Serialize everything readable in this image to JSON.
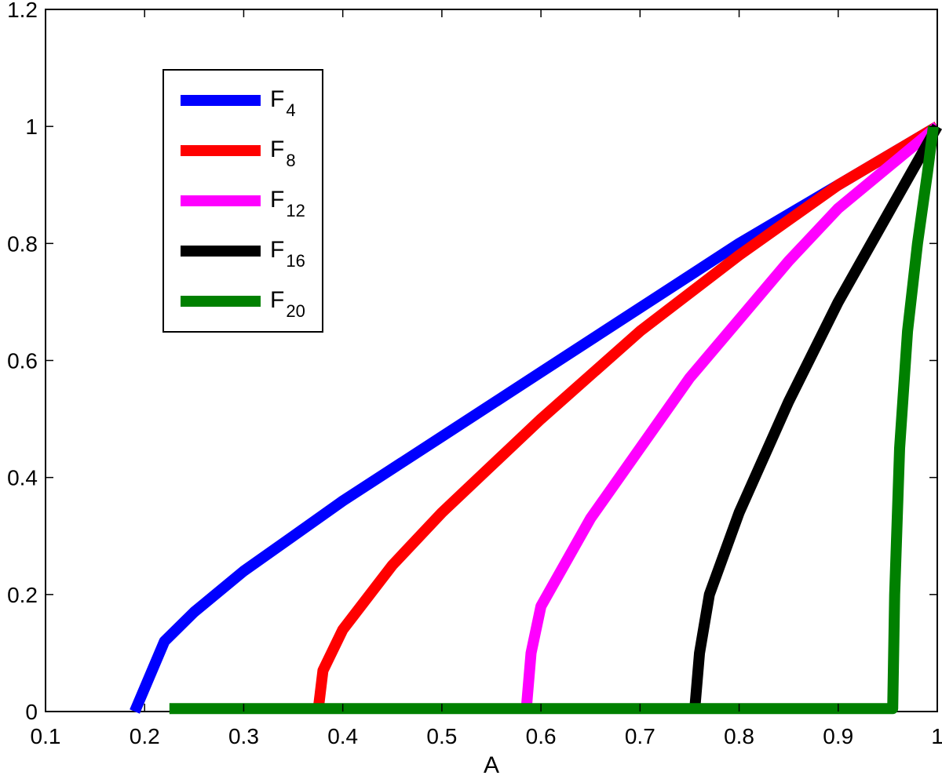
{
  "chart_data": {
    "type": "line",
    "title": "",
    "xlabel": "A",
    "ylabel": "",
    "xlim": [
      0.1,
      1
    ],
    "ylim": [
      0,
      1.2
    ],
    "x_ticks": [
      0.1,
      0.2,
      0.3,
      0.4,
      0.5,
      0.6,
      0.7,
      0.8,
      0.9,
      1
    ],
    "x_tick_labels": [
      "0.1",
      "0.2",
      "0.3",
      "0.4",
      "0.5",
      "0.6",
      "0.7",
      "0.8",
      "0.9",
      "1"
    ],
    "y_ticks": [
      0,
      0.2,
      0.4,
      0.6,
      0.8,
      1,
      1.2
    ],
    "y_tick_labels": [
      "0",
      "0.2",
      "0.4",
      "0.6",
      "0.8",
      "1",
      "1.2"
    ],
    "grid": false,
    "legend_position": "top-left",
    "series": [
      {
        "name": "F",
        "subscript": "4",
        "color": "#0000ff",
        "points": [
          [
            0.19,
            0
          ],
          [
            0.22,
            0.12
          ],
          [
            0.25,
            0.17
          ],
          [
            0.3,
            0.24
          ],
          [
            0.35,
            0.3
          ],
          [
            0.4,
            0.36
          ],
          [
            0.5,
            0.47
          ],
          [
            0.6,
            0.58
          ],
          [
            0.7,
            0.69
          ],
          [
            0.8,
            0.8
          ],
          [
            0.9,
            0.9
          ],
          [
            1.0,
            1.0
          ]
        ]
      },
      {
        "name": "F",
        "subscript": "8",
        "color": "#ff0000",
        "points": [
          [
            0.375,
            0
          ],
          [
            0.38,
            0.07
          ],
          [
            0.4,
            0.14
          ],
          [
            0.45,
            0.25
          ],
          [
            0.5,
            0.34
          ],
          [
            0.6,
            0.5
          ],
          [
            0.7,
            0.65
          ],
          [
            0.8,
            0.78
          ],
          [
            0.9,
            0.9
          ],
          [
            1.0,
            1.0
          ]
        ]
      },
      {
        "name": "F",
        "subscript": "12",
        "color": "#ff00ff",
        "points": [
          [
            0.585,
            0
          ],
          [
            0.59,
            0.1
          ],
          [
            0.6,
            0.18
          ],
          [
            0.65,
            0.33
          ],
          [
            0.7,
            0.45
          ],
          [
            0.75,
            0.57
          ],
          [
            0.8,
            0.67
          ],
          [
            0.85,
            0.77
          ],
          [
            0.9,
            0.86
          ],
          [
            0.95,
            0.93
          ],
          [
            1.0,
            1.0
          ]
        ]
      },
      {
        "name": "F",
        "subscript": "16",
        "color": "#000000",
        "points": [
          [
            0.755,
            0
          ],
          [
            0.76,
            0.1
          ],
          [
            0.77,
            0.2
          ],
          [
            0.8,
            0.34
          ],
          [
            0.85,
            0.53
          ],
          [
            0.9,
            0.7
          ],
          [
            0.95,
            0.85
          ],
          [
            0.98,
            0.94
          ],
          [
            1.0,
            1.0
          ]
        ]
      },
      {
        "name": "F",
        "subscript": "20",
        "color": "#008000",
        "points": [
          [
            0.225,
            0.005
          ],
          [
            0.955,
            0.005
          ],
          [
            0.957,
            0.2
          ],
          [
            0.962,
            0.45
          ],
          [
            0.97,
            0.65
          ],
          [
            0.98,
            0.8
          ],
          [
            0.99,
            0.92
          ],
          [
            0.996,
            1.0
          ]
        ]
      }
    ]
  }
}
